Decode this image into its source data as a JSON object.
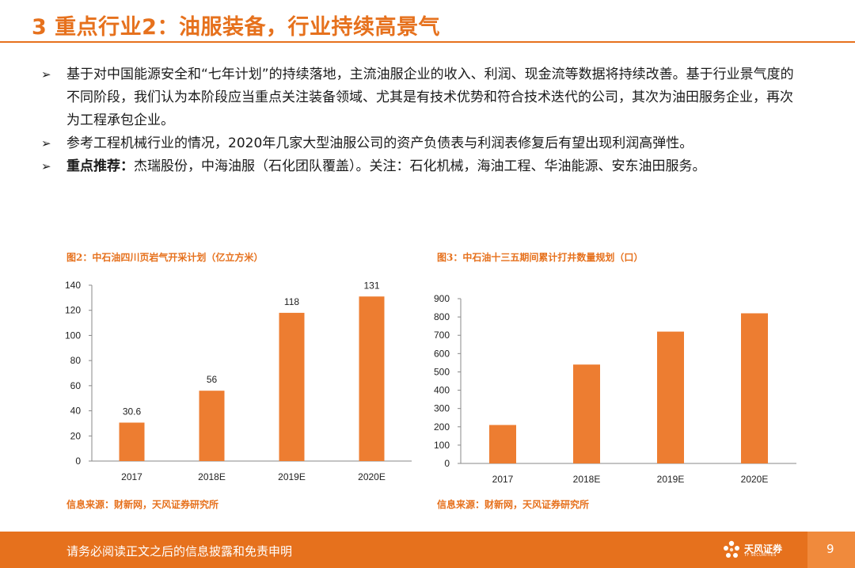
{
  "header": {
    "title": "3 重点行业2：油服装备，行业持续高景气"
  },
  "bullets": [
    {
      "arrow": "➢",
      "bold": "",
      "text": "基于对中国能源安全和“七年计划”的持续落地，主流油服企业的收入、利润、现金流等数据将持续改善。基于行业景气度的不同阶段，我们认为本阶段应当重点关注装备领域、尤其是有技术优势和符合技术迭代的公司，其次为油田服务企业，再次为工程承包企业。"
    },
    {
      "arrow": "➢",
      "bold": "",
      "text": "参考工程机械行业的情况，2020年几家大型油服公司的资产负债表与利润表修复后有望出现利润高弹性。"
    },
    {
      "arrow": "➢",
      "bold": "重点推荐：",
      "text": "杰瑞股份，中海油服（石化团队覆盖）。关注：石化机械，海油工程、华油能源、安东油田服务。"
    }
  ],
  "figures": [
    {
      "title": "图2：中石油四川页岩气开采计划（亿立方米）",
      "source": "信息来源：财新网，天风证券研究所"
    },
    {
      "title": "图3：中石油十三五期间累计打井数量规划（口）",
      "source": "信息来源：财新网，天风证券研究所"
    }
  ],
  "chart_data": [
    {
      "type": "bar",
      "title": "图2：中石油四川页岩气开采计划（亿立方米）",
      "categories": [
        "2017",
        "2018E",
        "2019E",
        "2020E"
      ],
      "values": [
        30.6,
        56,
        118,
        131
      ],
      "data_labels": [
        "30.6",
        "56",
        "118",
        "131"
      ],
      "ylim": [
        0,
        140
      ],
      "yticks": [
        0,
        20,
        40,
        60,
        80,
        100,
        120,
        140
      ],
      "grid": false,
      "bar_color": "#ed7d31"
    },
    {
      "type": "bar",
      "title": "图3：中石油十三五期间累计打井数量规划（口）",
      "categories": [
        "2017",
        "2018E",
        "2019E",
        "2020E"
      ],
      "values": [
        210,
        540,
        720,
        820
      ],
      "data_labels": [],
      "ylim": [
        0,
        900
      ],
      "yticks": [
        0,
        100,
        200,
        300,
        400,
        500,
        600,
        700,
        800,
        900
      ],
      "grid": false,
      "bar_color": "#ed7d31"
    }
  ],
  "footer": {
    "disclaimer": "请务必阅读正文之后的信息披露和免责申明",
    "logo_text": "天风证券",
    "logo_sub": "TF SECURITIES",
    "page_number": "9",
    "accent": "#e6711d"
  }
}
